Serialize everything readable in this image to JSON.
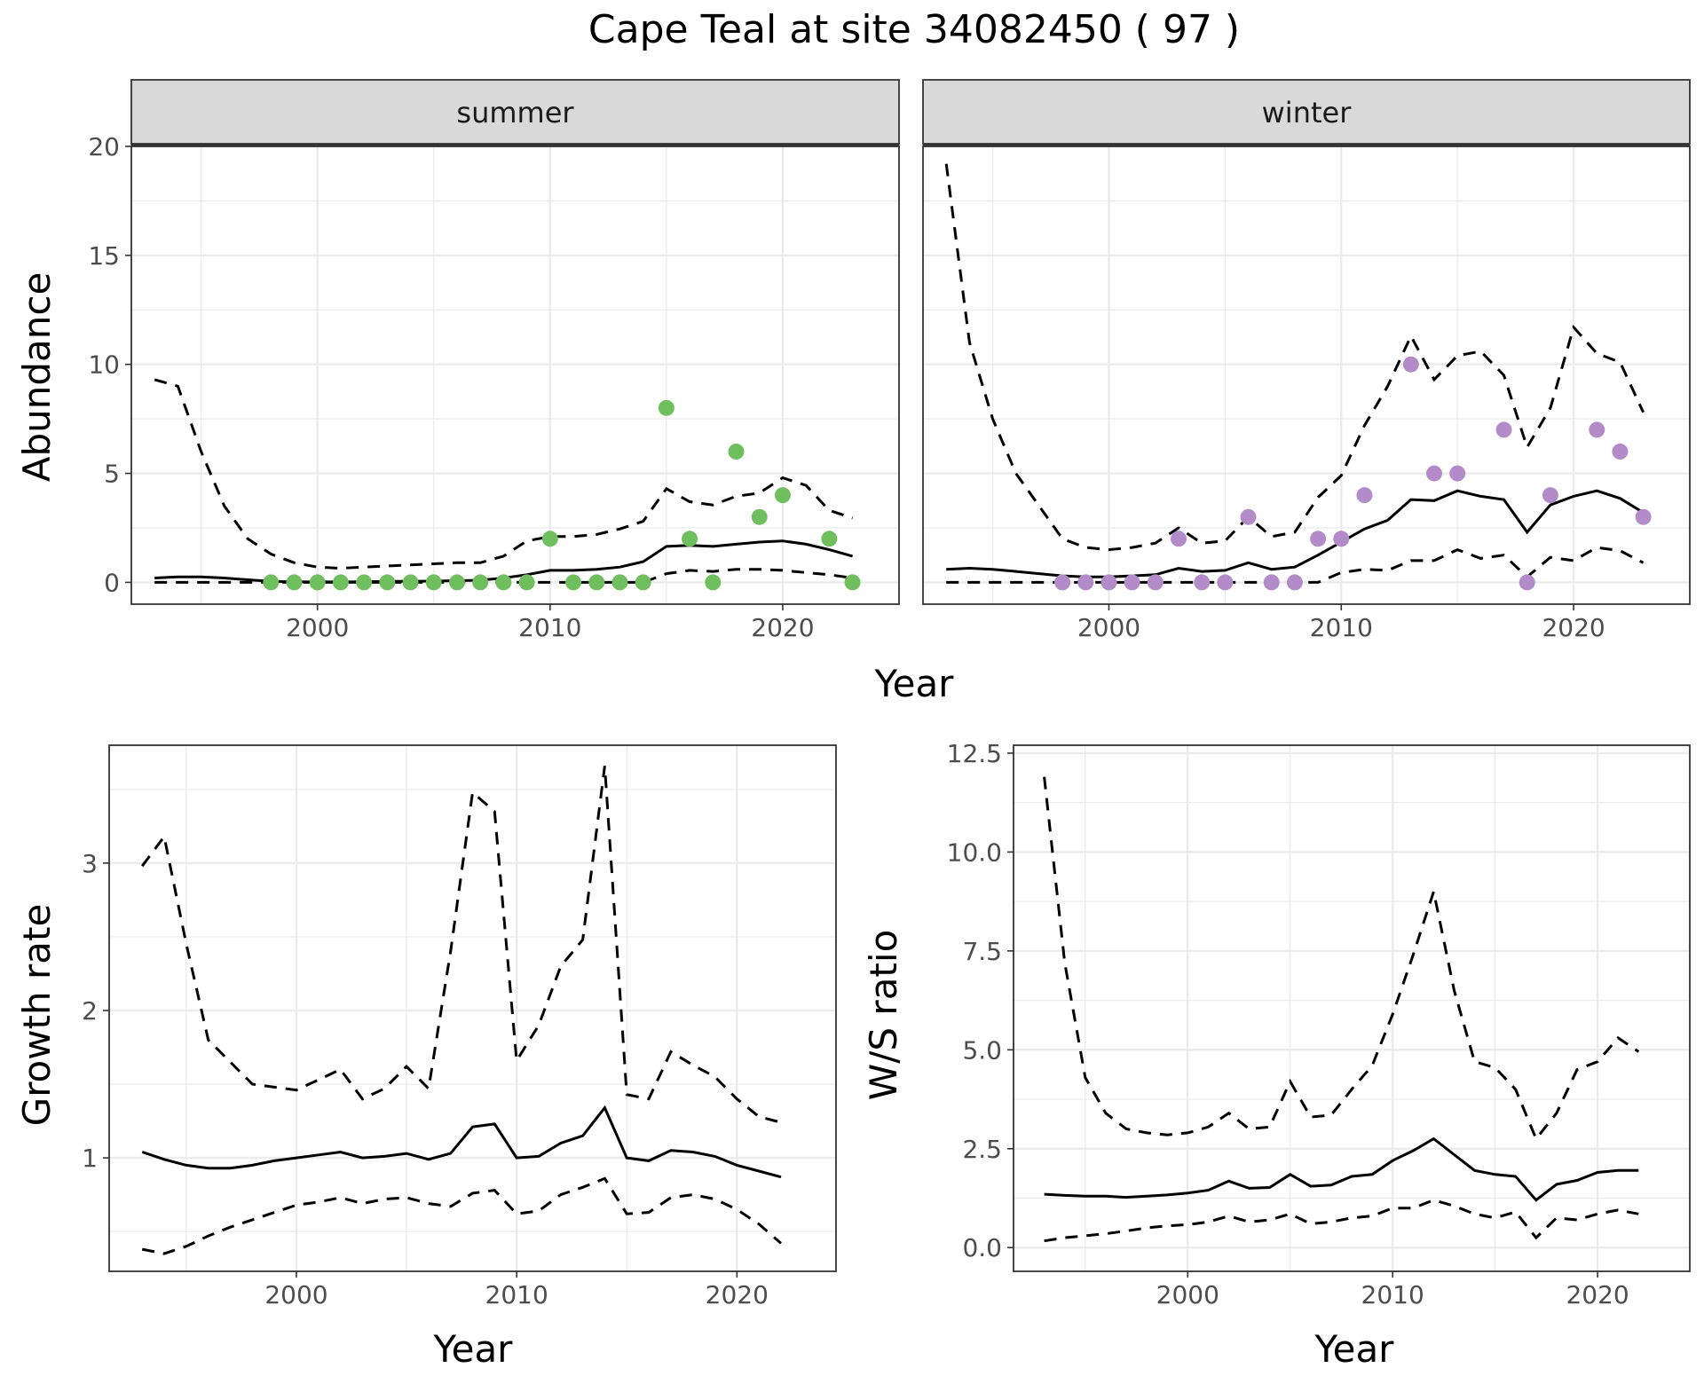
{
  "title": "Cape Teal at site 34082450 ( 97 )",
  "colors": {
    "summer_points": "#6fbf5f",
    "winter_points": "#b38bc8",
    "lines": "#000000",
    "strip_fill": "#d9d9d9",
    "grid": "#ebebeb"
  },
  "chart_data": [
    {
      "type": "line",
      "panel": "abundance",
      "ylabel": "Abundance",
      "xlabel": "Year",
      "xlim": [
        1992,
        2025
      ],
      "ylim": [
        -1,
        20
      ],
      "xticks": [
        2000,
        2010,
        2020
      ],
      "yticks": [
        0,
        5,
        10,
        15,
        20
      ],
      "grid": true,
      "facets": [
        {
          "strip": "summer",
          "observed": {
            "name": "counts",
            "x": [
              1998,
              1999,
              2000,
              2001,
              2002,
              2003,
              2004,
              2005,
              2006,
              2007,
              2008,
              2009,
              2010,
              2011,
              2012,
              2013,
              2014,
              2015,
              2016,
              2017,
              2018,
              2019,
              2020,
              2022,
              2023
            ],
            "y": [
              0,
              0,
              0,
              0,
              0,
              0,
              0,
              0,
              0,
              0,
              0,
              0,
              2,
              0,
              0,
              0,
              0,
              8,
              2,
              0,
              6,
              3,
              4,
              2,
              0
            ]
          },
          "x": [
            1993,
            1994,
            1995,
            1996,
            1997,
            1998,
            1999,
            2000,
            2001,
            2002,
            2003,
            2004,
            2005,
            2006,
            2007,
            2008,
            2009,
            2010,
            2011,
            2012,
            2013,
            2014,
            2015,
            2016,
            2017,
            2018,
            2019,
            2020,
            2021,
            2022,
            2023
          ],
          "mean": [
            0.2,
            0.25,
            0.25,
            0.2,
            0.12,
            0.05,
            0.02,
            0.02,
            0.02,
            0.03,
            0.05,
            0.05,
            0.06,
            0.08,
            0.1,
            0.2,
            0.35,
            0.55,
            0.55,
            0.6,
            0.7,
            0.95,
            1.65,
            1.7,
            1.65,
            1.75,
            1.85,
            1.9,
            1.75,
            1.5,
            1.2
          ],
          "upper": [
            9.3,
            9.0,
            6.0,
            3.5,
            2.0,
            1.3,
            0.9,
            0.7,
            0.65,
            0.7,
            0.75,
            0.8,
            0.85,
            0.9,
            0.9,
            1.2,
            1.9,
            2.1,
            2.1,
            2.2,
            2.45,
            2.8,
            4.3,
            3.7,
            3.55,
            3.95,
            4.1,
            4.8,
            4.45,
            3.3,
            2.95
          ],
          "lower": [
            0,
            0,
            0,
            0,
            0,
            0,
            0,
            0,
            0,
            0,
            0,
            0,
            0,
            0,
            0,
            0,
            0,
            0,
            0,
            0,
            0,
            0,
            0.4,
            0.55,
            0.5,
            0.6,
            0.6,
            0.55,
            0.45,
            0.35,
            0.2
          ]
        },
        {
          "strip": "winter",
          "observed": {
            "name": "counts",
            "x": [
              1998,
              1999,
              2000,
              2001,
              2002,
              2003,
              2004,
              2005,
              2006,
              2007,
              2008,
              2009,
              2010,
              2011,
              2013,
              2014,
              2015,
              2017,
              2018,
              2019,
              2021,
              2022,
              2023
            ],
            "y": [
              0,
              0,
              0,
              0,
              0,
              2,
              0,
              0,
              3,
              0,
              0,
              2,
              2,
              4,
              10,
              5,
              5,
              7,
              0,
              4,
              7,
              6,
              3
            ]
          },
          "x": [
            1993,
            1994,
            1995,
            1996,
            1997,
            1998,
            1999,
            2000,
            2001,
            2002,
            2003,
            2004,
            2005,
            2006,
            2007,
            2008,
            2009,
            2010,
            2011,
            2012,
            2013,
            2014,
            2015,
            2016,
            2017,
            2018,
            2019,
            2020,
            2021,
            2022,
            2023
          ],
          "mean": [
            0.6,
            0.65,
            0.6,
            0.5,
            0.4,
            0.3,
            0.25,
            0.25,
            0.3,
            0.35,
            0.65,
            0.5,
            0.55,
            0.9,
            0.6,
            0.7,
            1.25,
            1.85,
            2.45,
            2.85,
            3.8,
            3.75,
            4.2,
            3.95,
            3.8,
            2.3,
            3.55,
            3.95,
            4.2,
            3.85,
            3.2
          ],
          "upper": [
            19.2,
            11.0,
            7.5,
            5.0,
            3.5,
            2.0,
            1.6,
            1.5,
            1.6,
            1.8,
            2.5,
            1.8,
            1.9,
            3.0,
            2.1,
            2.3,
            3.9,
            4.9,
            7.2,
            9.0,
            11.3,
            9.3,
            10.4,
            10.6,
            9.5,
            6.2,
            8.0,
            11.7,
            10.5,
            10.1,
            7.8
          ],
          "lower": [
            0,
            0,
            0,
            0,
            0,
            0,
            0,
            0,
            0,
            0,
            0,
            0,
            0,
            0,
            0,
            0,
            0,
            0.45,
            0.6,
            0.55,
            1.0,
            1.0,
            1.5,
            1.1,
            1.25,
            0.25,
            1.15,
            1.0,
            1.6,
            1.45,
            0.9
          ]
        }
      ]
    },
    {
      "type": "line",
      "panel": "growth",
      "ylabel": "Growth rate",
      "xlabel": "Year",
      "xlim": [
        1991.5,
        2024.5
      ],
      "ylim": [
        0.23,
        3.8
      ],
      "xticks": [
        2000,
        2010,
        2020
      ],
      "yticks": [
        1,
        2,
        3
      ],
      "grid": true,
      "x": [
        1993,
        1994,
        1995,
        1996,
        1997,
        1998,
        1999,
        2000,
        2001,
        2002,
        2003,
        2004,
        2005,
        2006,
        2007,
        2008,
        2009,
        2010,
        2011,
        2012,
        2013,
        2014,
        2015,
        2016,
        2017,
        2018,
        2019,
        2020,
        2021,
        2022
      ],
      "mean": [
        1.04,
        0.99,
        0.95,
        0.93,
        0.93,
        0.95,
        0.98,
        1.0,
        1.02,
        1.04,
        1.0,
        1.01,
        1.03,
        0.99,
        1.03,
        1.21,
        1.23,
        1.0,
        1.01,
        1.1,
        1.15,
        1.34,
        1.0,
        0.98,
        1.05,
        1.04,
        1.01,
        0.95,
        0.91,
        0.87
      ],
      "upper": [
        2.98,
        3.18,
        2.45,
        1.8,
        1.65,
        1.5,
        1.48,
        1.46,
        1.53,
        1.6,
        1.4,
        1.47,
        1.62,
        1.47,
        2.4,
        3.48,
        3.35,
        1.66,
        1.9,
        2.3,
        2.48,
        3.66,
        1.43,
        1.4,
        1.72,
        1.63,
        1.55,
        1.4,
        1.28,
        1.24
      ],
      "lower": [
        0.38,
        0.35,
        0.4,
        0.47,
        0.53,
        0.58,
        0.63,
        0.68,
        0.7,
        0.73,
        0.69,
        0.72,
        0.73,
        0.69,
        0.67,
        0.76,
        0.78,
        0.62,
        0.64,
        0.75,
        0.8,
        0.86,
        0.62,
        0.63,
        0.73,
        0.75,
        0.72,
        0.65,
        0.55,
        0.42
      ]
    },
    {
      "type": "line",
      "panel": "ws_ratio",
      "ylabel": "W/S ratio",
      "xlabel": "Year",
      "xlim": [
        1991.5,
        2024.5
      ],
      "ylim": [
        -0.6,
        12.7
      ],
      "xticks": [
        2000,
        2010,
        2020
      ],
      "yticks": [
        0.0,
        2.5,
        5.0,
        7.5,
        10.0,
        12.5
      ],
      "ytick_labels": [
        "0.0",
        "2.5",
        "5.0",
        "7.5",
        "10.0",
        "12.5"
      ],
      "grid": true,
      "x": [
        1993,
        1994,
        1995,
        1996,
        1997,
        1998,
        1999,
        2000,
        2001,
        2002,
        2003,
        2004,
        2005,
        2006,
        2007,
        2008,
        2009,
        2010,
        2011,
        2012,
        2013,
        2014,
        2015,
        2016,
        2017,
        2018,
        2019,
        2020,
        2021,
        2022
      ],
      "mean": [
        1.35,
        1.32,
        1.3,
        1.3,
        1.27,
        1.3,
        1.33,
        1.38,
        1.45,
        1.68,
        1.5,
        1.52,
        1.85,
        1.55,
        1.58,
        1.8,
        1.85,
        2.2,
        2.45,
        2.75,
        2.35,
        1.95,
        1.85,
        1.8,
        1.2,
        1.6,
        1.7,
        1.9,
        1.95,
        1.95
      ],
      "upper": [
        11.9,
        7.2,
        4.3,
        3.4,
        3.0,
        2.9,
        2.85,
        2.9,
        3.05,
        3.4,
        3.0,
        3.05,
        4.2,
        3.3,
        3.35,
        4.0,
        4.6,
        5.9,
        7.4,
        9.0,
        6.5,
        4.7,
        4.55,
        4.0,
        2.75,
        3.4,
        4.5,
        4.7,
        5.3,
        4.95
      ],
      "lower": [
        0.17,
        0.25,
        0.3,
        0.35,
        0.42,
        0.5,
        0.55,
        0.58,
        0.65,
        0.8,
        0.65,
        0.7,
        0.85,
        0.6,
        0.65,
        0.75,
        0.8,
        1.0,
        1.0,
        1.2,
        1.05,
        0.85,
        0.75,
        0.9,
        0.25,
        0.75,
        0.7,
        0.85,
        0.95,
        0.85
      ]
    }
  ]
}
